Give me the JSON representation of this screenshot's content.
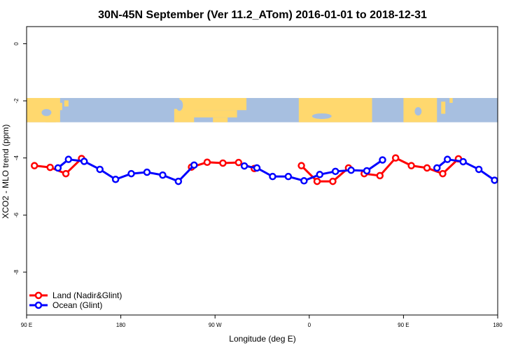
{
  "chart_data": {
    "type": "line",
    "title": "30N-45N September (Ver 11.2_ATom)   2016-01-01 to 2018-12-31",
    "xlabel": "Longitude (deg E)",
    "ylabel": "XCO2 - MLO trend (ppm)",
    "xlim": [
      90,
      540
    ],
    "ylim": [
      -9.5,
      0.6
    ],
    "x_ticks": [
      {
        "value": 90,
        "label": "90 E"
      },
      {
        "value": 180,
        "label": "180"
      },
      {
        "value": 270,
        "label": "90 W"
      },
      {
        "value": 360,
        "label": "0"
      },
      {
        "value": 450,
        "label": "90 E"
      },
      {
        "value": 540,
        "label": "180"
      }
    ],
    "y_ticks": [
      {
        "value": 0,
        "label": "0"
      },
      {
        "value": -2,
        "label": "-2"
      },
      {
        "value": -4,
        "label": "-4"
      },
      {
        "value": -6,
        "label": "-6"
      },
      {
        "value": -8,
        "label": "-8"
      }
    ],
    "map_band": {
      "y_top": -1.9,
      "y_bottom": -2.75,
      "land_color": "#FFD86E",
      "ocean_color": "#A7BFE0"
    },
    "legend_position": "bottom-left",
    "series": [
      {
        "name": "Land (Nadir&Glint)",
        "color": "#FF0000",
        "segments": [
          [
            [
              97.5,
              -4.27
            ],
            [
              112.5,
              -4.33
            ],
            [
              127.5,
              -4.55
            ],
            [
              142.5,
              -4.02
            ]
          ],
          [
            [
              247.5,
              -4.32
            ],
            [
              262.5,
              -4.15
            ],
            [
              277.5,
              -4.18
            ],
            [
              292.5,
              -4.16
            ],
            [
              307.5,
              -4.37
            ]
          ],
          [
            [
              352.5,
              -4.27
            ],
            [
              367.5,
              -4.82
            ],
            [
              382.5,
              -4.82
            ],
            [
              397.5,
              -4.35
            ]
          ],
          [
            [
              412.5,
              -4.55
            ],
            [
              427.5,
              -4.62
            ],
            [
              442.5,
              -4.0
            ],
            [
              457.5,
              -4.27
            ],
            [
              472.5,
              -4.35
            ],
            [
              487.5,
              -4.55
            ],
            [
              502.5,
              -4.03
            ]
          ]
        ]
      },
      {
        "name": "Ocean (Glint)",
        "color": "#0000FF",
        "segments": [
          [
            [
              120,
              -4.35
            ],
            [
              130,
              -4.05
            ],
            [
              145,
              -4.12
            ],
            [
              160,
              -4.4
            ],
            [
              175,
              -4.75
            ],
            [
              190,
              -4.55
            ],
            [
              205,
              -4.5
            ],
            [
              220,
              -4.6
            ],
            [
              235,
              -4.82
            ],
            [
              250,
              -4.25
            ]
          ],
          [
            [
              298,
              -4.28
            ],
            [
              310,
              -4.35
            ],
            [
              325,
              -4.65
            ],
            [
              340,
              -4.65
            ],
            [
              355,
              -4.8
            ],
            [
              370,
              -4.58
            ],
            [
              385,
              -4.47
            ],
            [
              400,
              -4.43
            ],
            [
              415,
              -4.45
            ],
            [
              430,
              -4.07
            ]
          ],
          [
            [
              482,
              -4.35
            ],
            [
              492,
              -4.05
            ],
            [
              507,
              -4.13
            ],
            [
              522,
              -4.4
            ],
            [
              537,
              -4.78
            ]
          ]
        ]
      }
    ]
  }
}
